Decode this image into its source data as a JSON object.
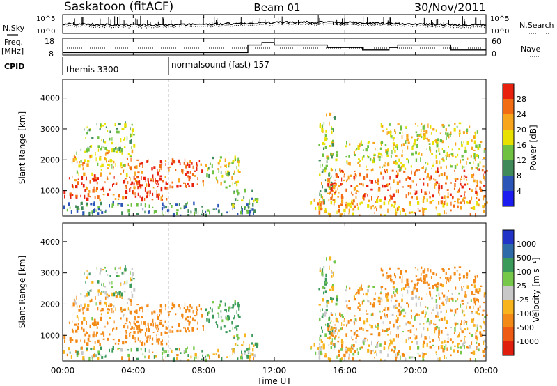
{
  "header": {
    "station": "Saskatoon (fitACF)",
    "beam": "Beam 01",
    "date": "30/Nov/2011"
  },
  "noise_panel": {
    "left_label": "N.Sky",
    "right_label": "N.Search",
    "left_ticks": [
      "10^5",
      "10^0"
    ],
    "right_ticks": [
      "10^5",
      "10^0"
    ]
  },
  "freq_panel": {
    "left_label_1": "Freq.",
    "left_label_2": "[MHz]",
    "right_label": "Nave",
    "left_ticks": [
      "18",
      "8"
    ],
    "right_ticks": [
      "60",
      "0"
    ]
  },
  "cpid": {
    "label": "CPID",
    "segments": [
      {
        "start_hour": 0,
        "name": "themis 3300"
      },
      {
        "start_hour": 6,
        "name": "normalsound (fast) 157"
      }
    ]
  },
  "power_panel": {
    "ylabel": "Slant Range [km]",
    "yticks": [
      "1000",
      "2000",
      "3000",
      "4000"
    ],
    "colorbar_label": "Power [dB]",
    "colorbar_ticks": [
      "4",
      "8",
      "12",
      "16",
      "20",
      "24",
      "28"
    ],
    "colors": [
      "#1c1cf0",
      "#2c55b8",
      "#3f8a58",
      "#6fc241",
      "#e8e000",
      "#f7a51c",
      "#f26c14",
      "#e8200e"
    ]
  },
  "velocity_panel": {
    "ylabel": "Slant Range [km]",
    "yticks": [
      "1000",
      "2000",
      "3000",
      "4000"
    ],
    "colorbar_label": "Velocity [m s⁻¹]",
    "colorbar_ticks": [
      "1000",
      "500",
      "100",
      "25",
      "-25",
      "-100",
      "-500",
      "-1000"
    ],
    "colors": [
      "#2233c8",
      "#2e6aa8",
      "#3a9a5a",
      "#76c84a",
      "#c8c8c8",
      "#f7b41c",
      "#f38a18",
      "#ee5a14",
      "#e01e0e"
    ]
  },
  "x_axis": {
    "label": "Time UT",
    "ticks": [
      "00:00",
      "04:00",
      "08:00",
      "12:00",
      "16:00",
      "20:00",
      "00:00"
    ]
  },
  "chart_data": {
    "type": "heatmap",
    "x_range_hours": [
      0,
      24
    ],
    "y_range_km": [
      180,
      4600
    ],
    "scatter_regions": [
      {
        "t0": 0.0,
        "t1": 6.0,
        "r0": 700,
        "r1": 1500,
        "power_db": 26,
        "velocity": -300
      },
      {
        "t0": 0.5,
        "t1": 4.0,
        "r0": 1500,
        "r1": 2300,
        "power_db": 18,
        "velocity": -100
      },
      {
        "t0": 1.0,
        "t1": 4.0,
        "r0": 2300,
        "r1": 3200,
        "power_db": 12,
        "velocity": 50
      },
      {
        "t0": 4.0,
        "t1": 8.0,
        "r0": 1100,
        "r1": 2000,
        "power_db": 26,
        "velocity": -300
      },
      {
        "t0": 8.0,
        "t1": 10.0,
        "r0": 1100,
        "r1": 2100,
        "power_db": 14,
        "velocity": 200
      },
      {
        "t0": 0.0,
        "t1": 11.0,
        "r0": 200,
        "r1": 600,
        "power_db": 8,
        "velocity": 25
      },
      {
        "t0": 9.5,
        "t1": 11.0,
        "r0": 300,
        "r1": 1000,
        "power_db": 10,
        "velocity": 50
      },
      {
        "t0": 14.5,
        "t1": 15.5,
        "r0": 600,
        "r1": 3500,
        "power_db": 14,
        "velocity": 60
      },
      {
        "t0": 15.0,
        "t1": 24.0,
        "r0": 700,
        "r1": 1700,
        "power_db": 24,
        "velocity": -100
      },
      {
        "t0": 16.0,
        "t1": 24.0,
        "r0": 1700,
        "r1": 2600,
        "power_db": 16,
        "velocity": -100
      },
      {
        "t0": 18.0,
        "t1": 23.5,
        "r0": 2600,
        "r1": 3200,
        "power_db": 16,
        "velocity": -300
      },
      {
        "t0": 14.0,
        "t1": 24.0,
        "r0": 200,
        "r1": 700,
        "power_db": 20,
        "velocity": -50
      }
    ],
    "frequency_mhz": [
      {
        "t0": 0,
        "t1": 10.5,
        "value": 10
      },
      {
        "t0": 10.5,
        "t1": 11.3,
        "value": 16
      },
      {
        "t0": 11.3,
        "t1": 12.0,
        "value": 18
      },
      {
        "t0": 12.0,
        "t1": 15.0,
        "value": 16
      },
      {
        "t0": 15.0,
        "t1": 17.0,
        "value": 14
      },
      {
        "t0": 17.0,
        "t1": 18.5,
        "value": 12
      },
      {
        "t0": 18.5,
        "t1": 19.0,
        "value": 14
      },
      {
        "t0": 19.0,
        "t1": 22.0,
        "value": 16
      },
      {
        "t0": 22.0,
        "t1": 24.0,
        "value": 12
      }
    ]
  }
}
